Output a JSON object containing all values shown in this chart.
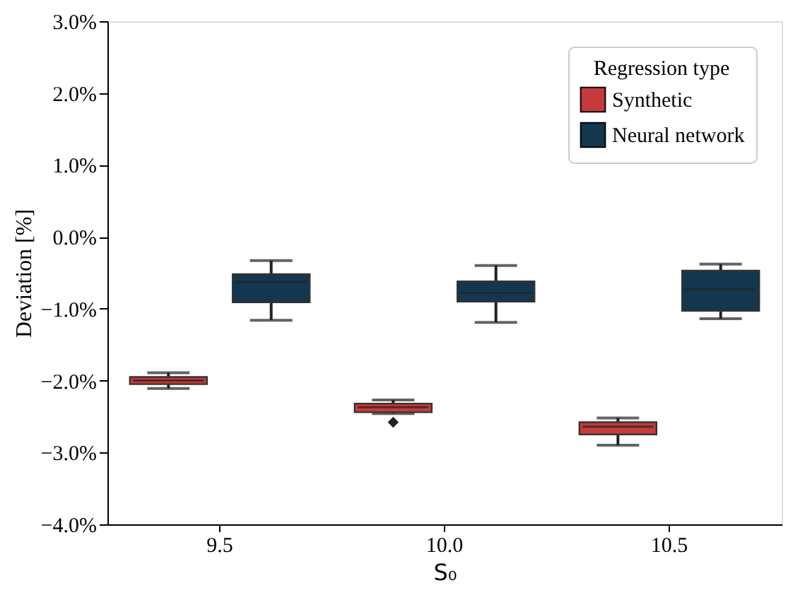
{
  "chart_data": {
    "type": "box",
    "xlabel": "S₀",
    "ylabel": "Deviation [%]",
    "legend_title": "Regression type",
    "legend": "top right",
    "grid": false,
    "categories": [
      "9.5",
      "10.0",
      "10.5"
    ],
    "ylim": [
      -4.0,
      3.0
    ],
    "yticks": [
      {
        "value": -4,
        "label": "−4.0%"
      },
      {
        "value": -3,
        "label": "−3.0%"
      },
      {
        "value": -2,
        "label": "−2.0%"
      },
      {
        "value": -1,
        "label": "−1.0%"
      },
      {
        "value": 0,
        "label": "0.0%"
      },
      {
        "value": 1,
        "label": "1.0%"
      },
      {
        "value": 2,
        "label": "2.0%"
      },
      {
        "value": 3,
        "label": "3.0%"
      }
    ],
    "series": [
      {
        "name": "Synthetic",
        "color": "#c63a3b",
        "boxes": [
          {
            "low": -2.11,
            "q1": -2.05,
            "median": -2.0,
            "q3": -1.95,
            "high": -1.89
          },
          {
            "low": -2.46,
            "q1": -2.44,
            "median": -2.37,
            "q3": -2.32,
            "high": -2.27,
            "outliers": [
              -2.58
            ]
          },
          {
            "low": -2.9,
            "q1": -2.75,
            "median": -2.64,
            "q3": -2.58,
            "high": -2.52
          }
        ]
      },
      {
        "name": "Neural network",
        "color": "#12374f",
        "boxes": [
          {
            "low": -1.16,
            "q1": -0.91,
            "median": -0.63,
            "q3": -0.52,
            "high": -0.33
          },
          {
            "low": -1.19,
            "q1": -0.9,
            "median": -0.78,
            "q3": -0.62,
            "high": -0.4
          },
          {
            "low": -1.14,
            "q1": -1.03,
            "median": -0.73,
            "q3": -0.47,
            "high": -0.38
          }
        ]
      }
    ]
  }
}
